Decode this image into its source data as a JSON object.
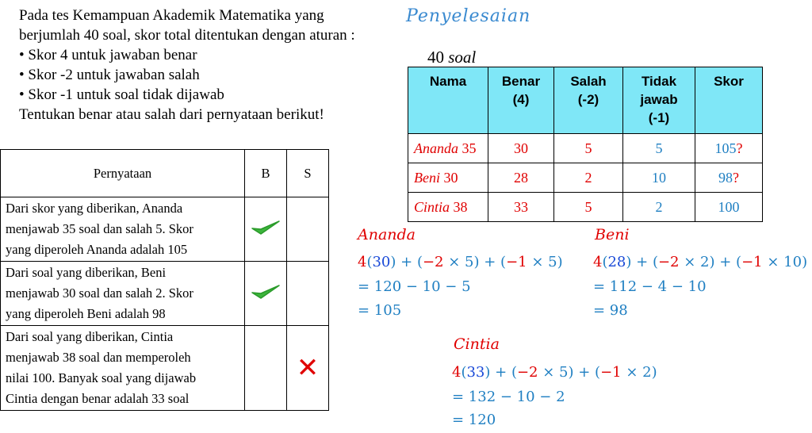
{
  "problem": {
    "lines": [
      "Pada tes Kemampuan Akademik Matematika yang",
      "berjumlah 40 soal, skor total ditentukan dengan aturan :",
      "• Skor 4 untuk jawaban benar",
      "• Skor -2 untuk jawaban salah",
      "• Skor -1 untuk soal tidak dijawab",
      "Tentukan benar atau salah dari pernyataan berikut!"
    ]
  },
  "statement_table": {
    "headers": [
      "Pernyataan",
      "B",
      "S"
    ],
    "rows": [
      {
        "lines": [
          "Dari skor yang diberikan, Ananda",
          "menjawab 35 soal dan salah 5. Skor",
          "yang diperoleh Ananda adalah 105"
        ],
        "mark": "B",
        "mark_icon": "check-icon"
      },
      {
        "lines": [
          "Dari soal yang diberikan, Beni",
          "menjawab 30 soal dan salah 2. Skor",
          "yang diperoleh Beni adalah 98"
        ],
        "mark": "B",
        "mark_icon": "check-icon"
      },
      {
        "lines": [
          "Dari soal yang diberikan, Cintia",
          "menjawab 38 soal dan memperoleh",
          "nilai 100. Banyak soal yang dijawab",
          "Cintia dengan benar adalah 33 soal"
        ],
        "mark": "S",
        "mark_icon": "cross-icon"
      }
    ]
  },
  "solution": {
    "heading": "Penyelesaian",
    "soal_count": "40",
    "soal_word": "soal",
    "table": {
      "headers": [
        [
          "Nama"
        ],
        [
          "Benar",
          "(4)"
        ],
        [
          "Salah",
          "(-2)"
        ],
        [
          "Tidak",
          "jawab",
          "(-1)"
        ],
        [
          "Skor"
        ]
      ],
      "header_color": "#7fe7f7",
      "rows": [
        {
          "name": "Ananda",
          "num": "35",
          "benar": "30",
          "salah": "5",
          "tidak": "5",
          "skor": "105",
          "flag": "?"
        },
        {
          "name": "Beni",
          "num": "30",
          "benar": "28",
          "salah": "2",
          "tidak": "10",
          "skor": "98",
          "flag": "?"
        },
        {
          "name": "Cintia",
          "num": "38",
          "benar": "33",
          "salah": "5",
          "tidak": "2",
          "skor": "100",
          "flag": ""
        }
      ]
    },
    "calcs": {
      "ananda": {
        "title": "Ananda",
        "line1": {
          "a": "4",
          "b": "30",
          "c": "−2",
          "d": "5",
          "e": "−1",
          "f": "5"
        },
        "line2": "= 120 − 10 − 5",
        "line3": "= 105"
      },
      "beni": {
        "title": "Beni",
        "line1": {
          "a": "4",
          "b": "28",
          "c": "−2",
          "d": "2",
          "e": "−1",
          "f": "10"
        },
        "line2": "= 112 − 4 − 10",
        "line3": "= 98"
      },
      "cintia": {
        "title": "Cintia",
        "line1": {
          "a": "4",
          "b": "33",
          "c": "−2",
          "d": "5",
          "e": "−1",
          "f": "2"
        },
        "line2": "= 132 − 10 − 2",
        "line3": "= 120"
      }
    }
  }
}
